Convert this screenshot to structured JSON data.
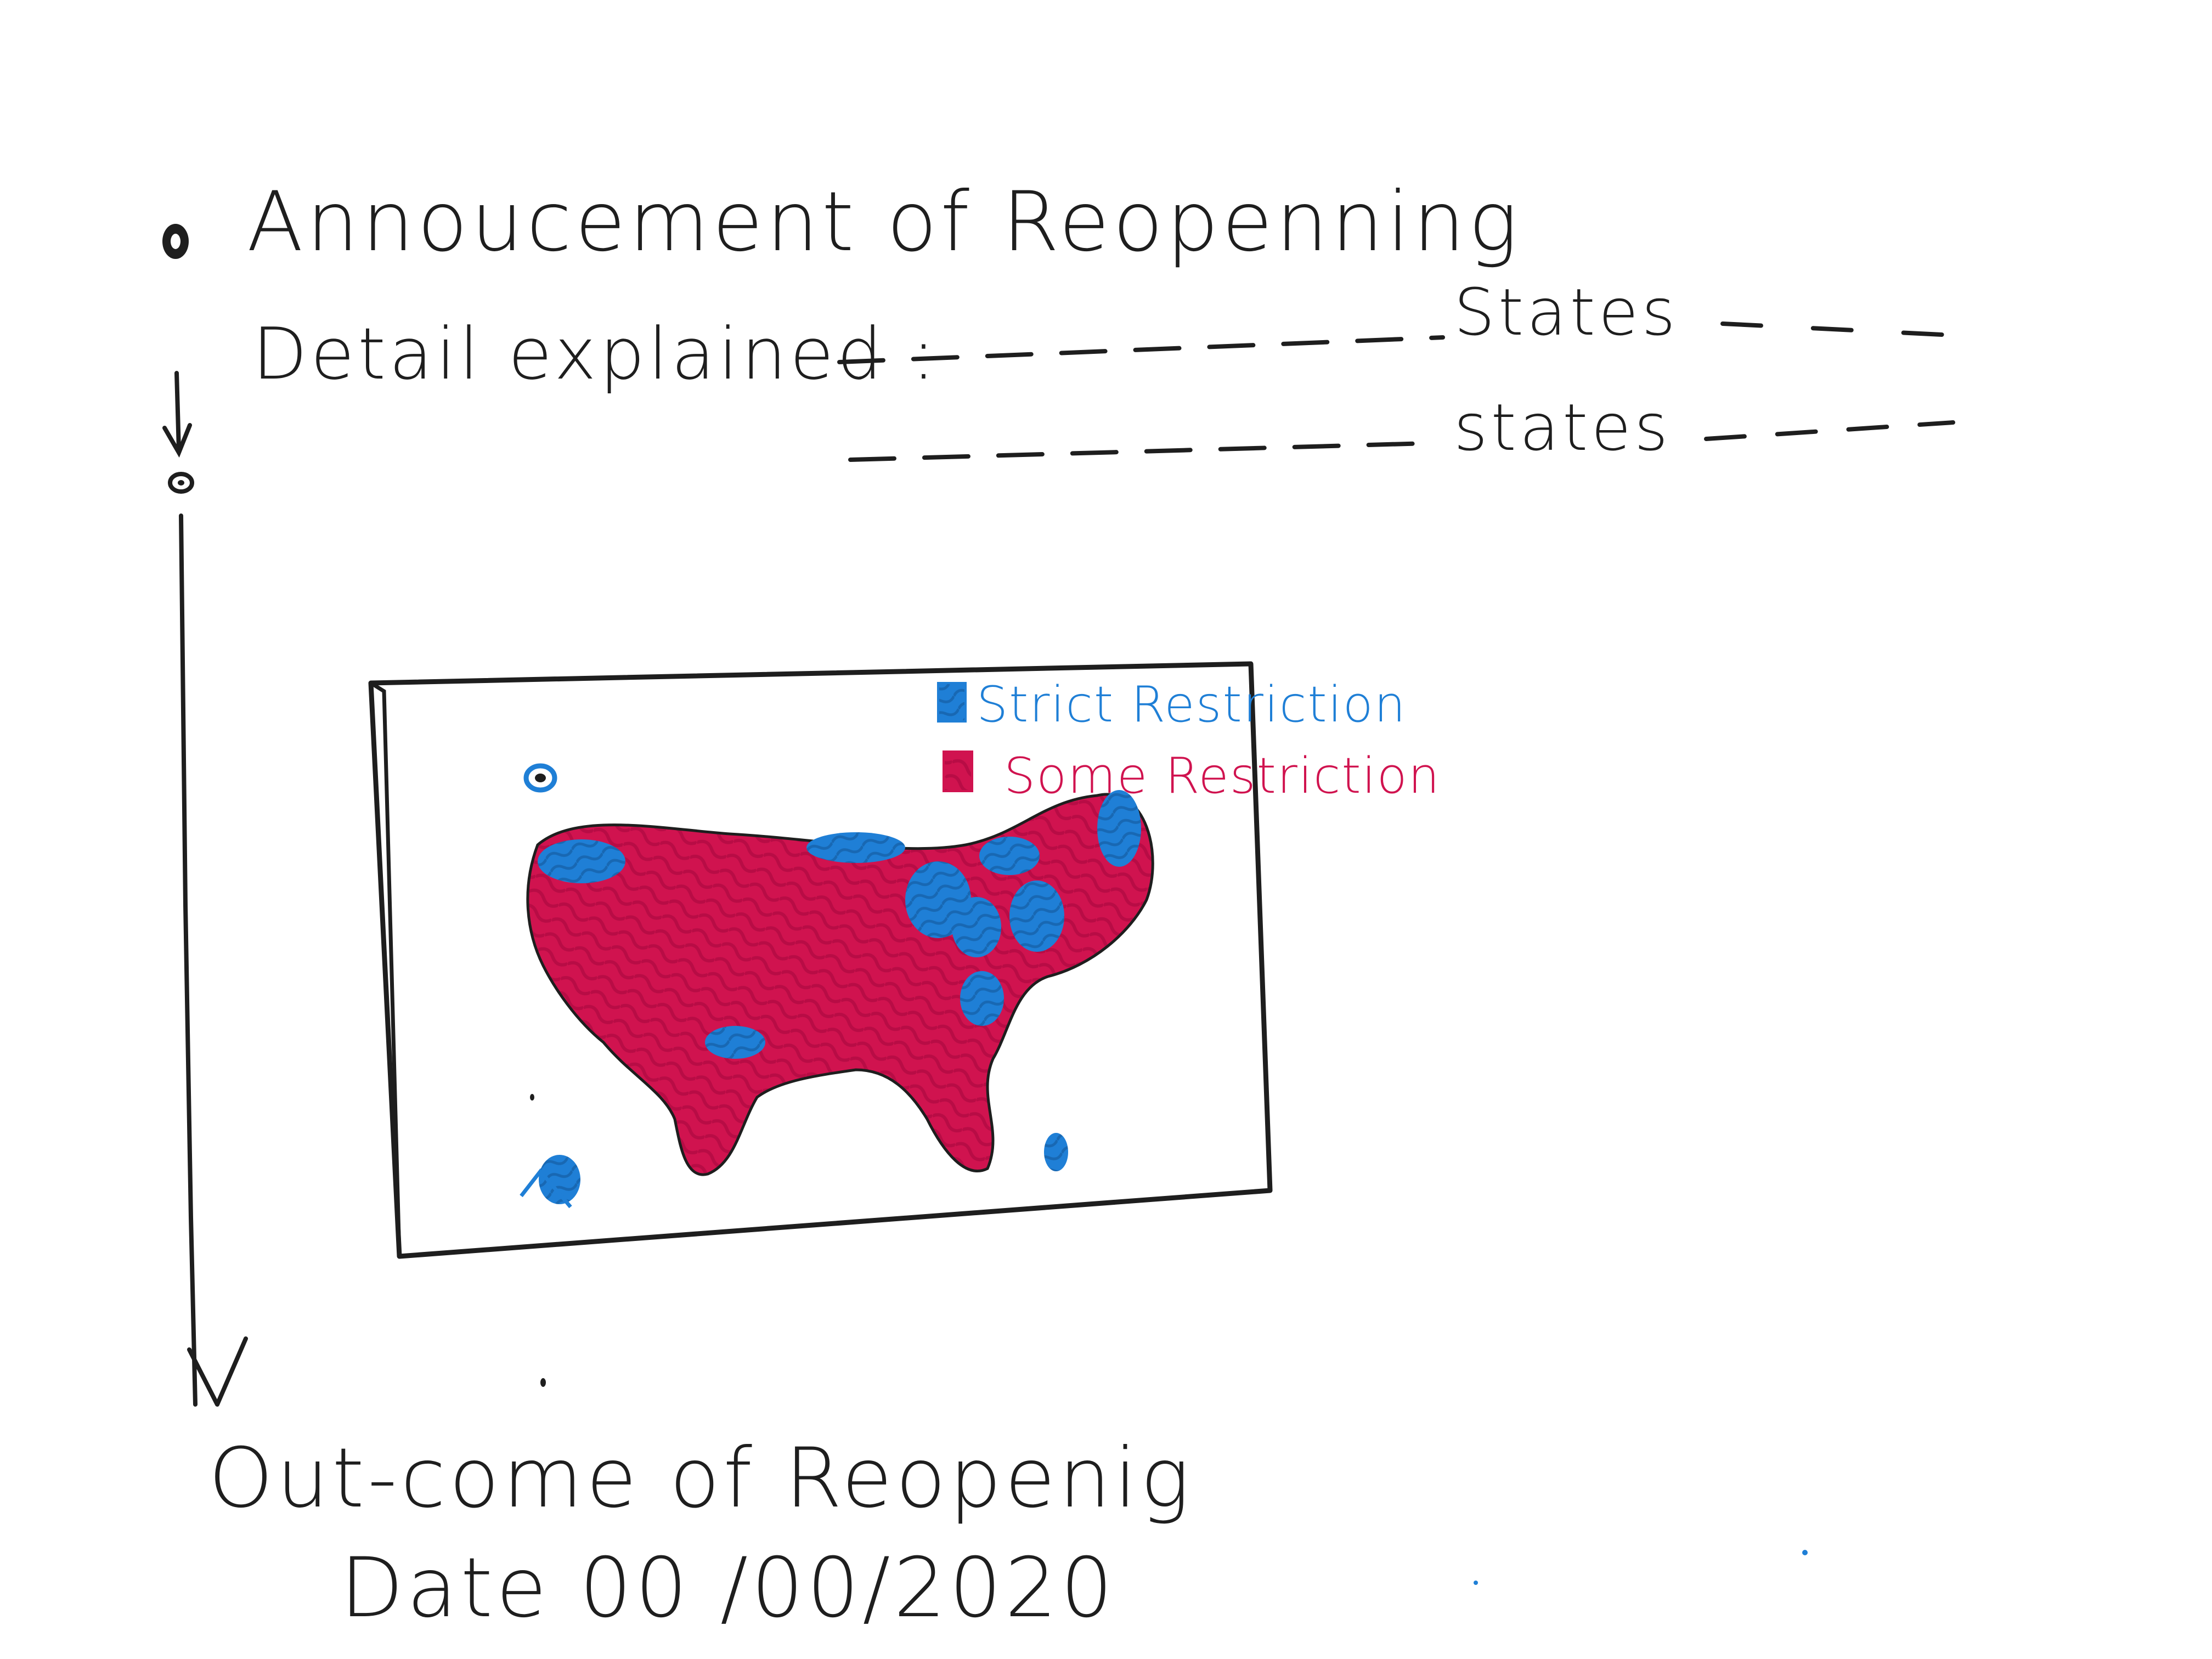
{
  "announcement": {
    "title": "Annoucement of Reopenning",
    "detail_label": "Detail explained :",
    "states_line_1": "States",
    "states_line_2": "states"
  },
  "map_frame": {
    "legend": [
      {
        "label": "Strict Restriction",
        "color": "#1f7fd6"
      },
      {
        "label": "Some Restriction",
        "color": "#d0134f"
      }
    ]
  },
  "outcome": {
    "title": "Out-come of Reopenig",
    "date": "Date 00 /00/2020"
  },
  "colors": {
    "ink": "#1e1e1e",
    "strict": "#1f7fd6",
    "some": "#d0134f"
  },
  "icons": [
    "timeline-dot-icon",
    "down-arrow-icon",
    "us-map-icon"
  ]
}
